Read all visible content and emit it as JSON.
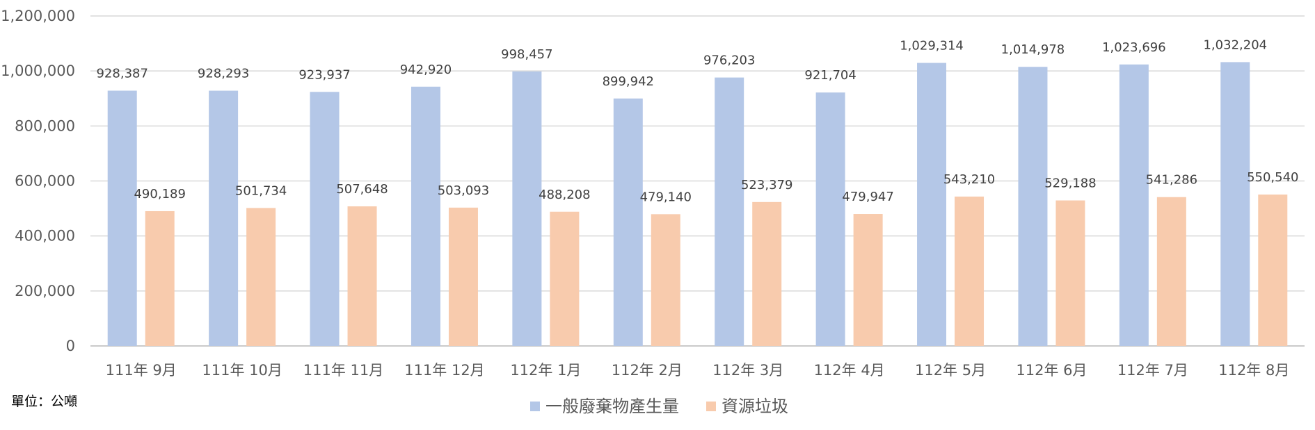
{
  "chart_data": {
    "type": "bar",
    "categories": [
      "111年 9月",
      "111年 10月",
      "111年 11月",
      "111年 12月",
      "112年 1月",
      "112年 2月",
      "112年 3月",
      "112年 4月",
      "112年 5月",
      "112年 6月",
      "112年 7月",
      "112年 8月"
    ],
    "series": [
      {
        "name": "一般廢棄物產生量",
        "color": "#b4c7e7",
        "values": [
          928387,
          928293,
          923937,
          942920,
          998457,
          899942,
          976203,
          921704,
          1029314,
          1014978,
          1023696,
          1032204
        ],
        "labels": [
          "928,387",
          "928,293",
          "923,937",
          "942,920",
          "998,457",
          "899,942",
          "976,203",
          "921,704",
          "1,029,314",
          "1,014,978",
          "1,023,696",
          "1,032,204"
        ]
      },
      {
        "name": "資源垃圾",
        "color": "#f8cbad",
        "values": [
          490189,
          501734,
          507648,
          503093,
          488208,
          479140,
          523379,
          479947,
          543210,
          529188,
          541286,
          550540
        ],
        "labels": [
          "490,189",
          "501,734",
          "507,648",
          "503,093",
          "488,208",
          "479,140",
          "523,379",
          "479,947",
          "543,210",
          "529,188",
          "541,286",
          "550,540"
        ]
      }
    ],
    "yticks": [
      "0",
      "200,000",
      "400,000",
      "600,000",
      "800,000",
      "1,000,000",
      "1,200,000"
    ],
    "ylim": [
      0,
      1200000
    ],
    "grid": true,
    "legend_position": "bottom",
    "unit_note": "單位：公噸"
  }
}
